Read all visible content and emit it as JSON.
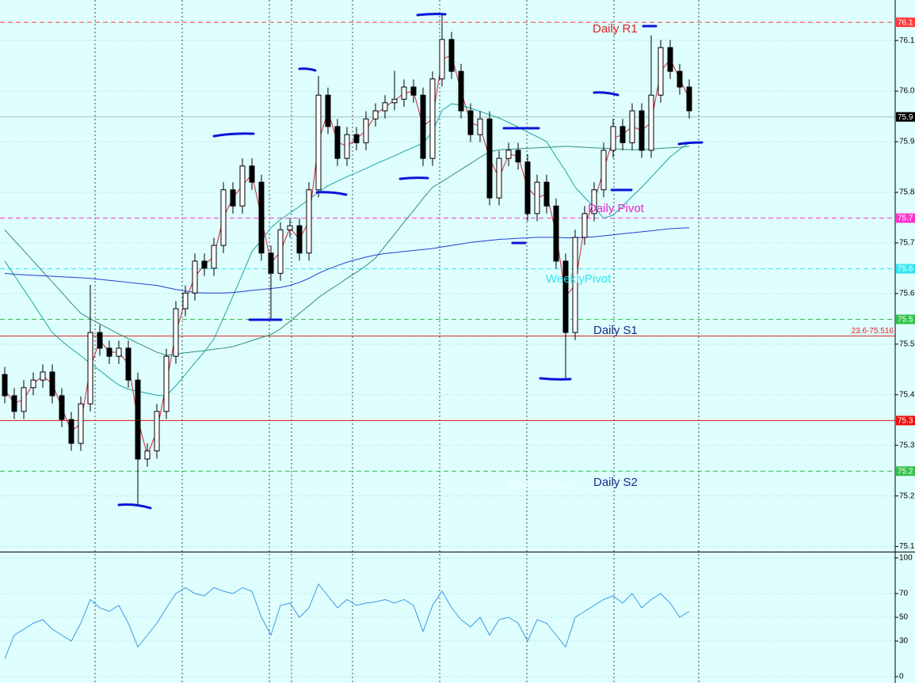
{
  "chart_data": [
    {
      "type": "candlestick",
      "open": [
        75.44,
        75.398,
        75.367,
        75.414,
        75.429,
        75.445,
        75.398,
        75.351,
        75.304,
        75.382,
        75.523,
        75.492,
        75.476,
        75.492,
        75.429,
        75.273,
        75.289,
        75.367,
        75.476,
        75.57,
        75.601,
        75.664,
        75.65,
        75.695,
        75.805,
        75.773,
        75.852,
        75.82,
        75.68,
        75.64,
        75.726,
        75.734,
        75.68,
        75.805,
        75.992,
        75.93,
        75.867,
        75.914,
        75.898,
        75.945,
        75.961,
        75.977,
        75.984,
        76.008,
        75.992,
        75.867,
        76.024,
        76.102,
        76.039,
        75.961,
        75.914,
        75.945,
        75.789,
        75.867,
        75.883,
        75.86,
        75.758,
        75.82,
        75.773,
        75.664,
        75.523,
        75.711,
        75.758,
        75.805,
        75.883,
        75.93,
        75.898,
        75.961,
        75.883,
        75.992,
        76.086,
        76.039,
        76.008
      ],
      "high": [
        75.455,
        75.413,
        75.429,
        75.444,
        75.46,
        75.46,
        75.413,
        75.366,
        75.397,
        75.617,
        75.538,
        75.507,
        75.507,
        75.507,
        75.444,
        75.304,
        75.382,
        75.491,
        75.585,
        75.616,
        75.679,
        75.679,
        75.71,
        75.82,
        75.82,
        75.867,
        75.867,
        75.835,
        75.695,
        75.741,
        75.749,
        75.749,
        75.82,
        76.03,
        76.007,
        75.945,
        75.929,
        75.929,
        75.96,
        75.976,
        75.992,
        76.04,
        76.023,
        76.023,
        76.007,
        76.039,
        76.152,
        76.117,
        76.054,
        75.976,
        75.96,
        75.96,
        75.882,
        75.898,
        75.898,
        75.875,
        75.835,
        75.835,
        75.788,
        75.679,
        75.726,
        75.773,
        75.82,
        75.898,
        75.945,
        75.945,
        75.976,
        75.976,
        76.11,
        76.101,
        76.101,
        76.054,
        76.023
      ],
      "low": [
        75.383,
        75.352,
        75.352,
        75.399,
        75.414,
        75.383,
        75.336,
        75.289,
        75.289,
        75.367,
        75.477,
        75.461,
        75.461,
        75.414,
        75.179,
        75.258,
        75.274,
        75.352,
        75.461,
        75.555,
        75.586,
        75.635,
        75.635,
        75.68,
        75.758,
        75.758,
        75.805,
        75.665,
        75.55,
        75.625,
        75.711,
        75.665,
        75.665,
        75.79,
        75.915,
        75.852,
        75.852,
        75.883,
        75.883,
        75.93,
        75.946,
        75.962,
        75.969,
        75.977,
        75.852,
        75.852,
        76.009,
        76.024,
        75.946,
        75.899,
        75.899,
        75.774,
        75.774,
        75.852,
        75.845,
        75.743,
        75.743,
        75.758,
        75.649,
        75.432,
        75.508,
        75.696,
        75.743,
        75.79,
        75.868,
        75.883,
        75.883,
        75.868,
        75.868,
        75.977,
        76.024,
        75.993,
        75.946
      ],
      "close": [
        75.398,
        75.367,
        75.414,
        75.429,
        75.445,
        75.398,
        75.351,
        75.304,
        75.382,
        75.523,
        75.492,
        75.476,
        75.492,
        75.429,
        75.273,
        75.289,
        75.367,
        75.476,
        75.57,
        75.601,
        75.664,
        75.65,
        75.695,
        75.805,
        75.773,
        75.852,
        75.82,
        75.68,
        75.64,
        75.726,
        75.734,
        75.68,
        75.805,
        75.992,
        75.93,
        75.867,
        75.914,
        75.898,
        75.945,
        75.961,
        75.977,
        75.984,
        76.008,
        75.992,
        75.867,
        76.024,
        76.102,
        76.039,
        75.961,
        75.914,
        75.945,
        75.789,
        75.867,
        75.883,
        75.86,
        75.758,
        75.82,
        75.773,
        75.664,
        75.523,
        75.711,
        75.758,
        75.805,
        75.883,
        75.93,
        75.898,
        75.961,
        75.883,
        75.992,
        76.086,
        76.039,
        76.008,
        75.961
      ],
      "series": [
        {
          "color": "#d2233a",
          "values": [
            75.41,
            75.383,
            75.391,
            75.422,
            75.437,
            75.422,
            75.375,
            75.328,
            75.343,
            75.453,
            75.508,
            75.484,
            75.484,
            75.461,
            75.351,
            75.281,
            75.328,
            75.422,
            75.523,
            75.586,
            75.633,
            75.657,
            75.673,
            75.75,
            75.789,
            75.813,
            75.836,
            75.75,
            75.66,
            75.683,
            75.73,
            75.707,
            75.743,
            75.899,
            75.961,
            75.899,
            75.891,
            75.906,
            75.922,
            75.953,
            75.969,
            75.981,
            75.996,
            76.0,
            75.93,
            75.946,
            76.063,
            76.071,
            76.0,
            75.938,
            75.93,
            75.867,
            75.828,
            75.875,
            75.872,
            75.809,
            75.789,
            75.797,
            75.719,
            75.594,
            75.617,
            75.735,
            75.782,
            75.844,
            75.907,
            75.914,
            75.93,
            75.922,
            75.938,
            76.039,
            76.063,
            76.024,
            75.985
          ]
        },
        {
          "color": "#1aa5a5",
          "values": [
            75.664,
            75.636,
            75.608,
            75.58,
            75.551,
            75.523,
            75.506,
            75.491,
            75.477,
            75.462,
            75.448,
            75.433,
            75.419,
            75.411,
            75.407,
            75.403,
            75.399,
            75.398,
            75.418,
            75.44,
            75.463,
            75.485,
            75.51,
            75.552,
            75.595,
            75.638,
            75.683,
            75.705,
            75.73,
            75.746,
            75.759,
            75.772,
            75.786,
            75.8,
            75.813,
            75.822,
            75.831,
            75.839,
            75.847,
            75.856,
            75.864,
            75.872,
            75.881,
            75.889,
            75.897,
            75.92,
            75.962,
            75.975,
            75.972,
            75.966,
            75.96,
            75.953,
            75.947,
            75.938,
            75.929,
            75.919,
            75.91,
            75.9,
            75.87,
            75.842,
            75.81,
            75.79,
            75.77,
            75.749,
            75.755,
            75.773,
            75.792,
            75.81,
            75.83,
            75.85,
            75.87,
            75.885,
            75.898
          ]
        },
        {
          "color": "#2f8f78",
          "values": [
            75.726,
            75.705,
            75.685,
            75.664,
            75.643,
            75.623,
            75.602,
            75.581,
            75.561,
            75.55,
            75.54,
            75.53,
            75.52,
            75.511,
            75.502,
            75.493,
            75.484,
            75.478,
            75.48,
            75.483,
            75.485,
            75.487,
            75.49,
            75.492,
            75.495,
            75.501,
            75.507,
            75.513,
            75.519,
            75.53,
            75.545,
            75.561,
            75.576,
            75.592,
            75.605,
            75.617,
            75.63,
            75.642,
            75.655,
            75.67,
            75.694,
            75.717,
            75.741,
            75.764,
            75.788,
            75.81,
            75.821,
            75.833,
            75.845,
            75.857,
            75.869,
            75.88,
            75.884,
            75.885,
            75.886,
            75.887,
            75.888,
            75.889,
            75.89,
            75.891,
            75.89,
            75.889,
            75.888,
            75.887,
            75.886,
            75.885,
            75.884,
            75.884,
            75.885,
            75.887,
            75.888,
            75.889,
            75.891
          ]
        },
        {
          "color": "#1f3fd6",
          "values": [
            75.64,
            75.638,
            75.637,
            75.636,
            75.635,
            75.634,
            75.633,
            75.632,
            75.631,
            75.63,
            75.628,
            75.626,
            75.624,
            75.622,
            75.62,
            75.618,
            75.616,
            75.612,
            75.608,
            75.605,
            75.602,
            75.601,
            75.601,
            75.601,
            75.602,
            75.604,
            75.606,
            75.608,
            75.61,
            75.612,
            75.616,
            75.622,
            75.63,
            75.64,
            75.648,
            75.655,
            75.662,
            75.667,
            75.672,
            75.676,
            75.679,
            75.681,
            75.683,
            75.685,
            75.687,
            75.689,
            75.692,
            75.695,
            75.698,
            75.701,
            75.703,
            75.705,
            75.707,
            75.708,
            75.709,
            75.71,
            75.711,
            75.711,
            75.711,
            75.71,
            75.71,
            75.711,
            75.712,
            75.714,
            75.716,
            75.718,
            75.72,
            75.722,
            75.724,
            75.726,
            75.728,
            75.729,
            75.73
          ]
        }
      ],
      "ylim": [
        75.09,
        76.18
      ],
      "yticks": [
        75.1,
        75.2,
        75.3,
        75.4,
        75.5,
        75.6,
        75.7,
        75.8,
        75.9,
        {
          "value": 76.0,
          "label": "76.0"
        },
        76.1
      ],
      "grid": true,
      "levels": [
        {
          "value": 76.136,
          "label": "76.1",
          "color": "#ff3b3b",
          "dash": true,
          "box": true
        },
        {
          "value": 75.949,
          "label": "75.9",
          "color": "#000000",
          "dash": false,
          "box": true
        },
        {
          "value": 75.749,
          "label": "75.7",
          "color": "#ff33cc",
          "dash": true,
          "box": true
        },
        {
          "value": 75.649,
          "label": "75.6",
          "color": "#33e6f0",
          "dash": true,
          "box": true
        },
        {
          "value": 75.549,
          "label": "75.5",
          "color": "#33c24a",
          "dash": true,
          "box": true
        },
        {
          "value": 75.516,
          "label": "23.6-75.516",
          "color": "#e02020",
          "dash": false,
          "box": false
        },
        {
          "value": 75.349,
          "label": "75.3",
          "color": "#ee1111",
          "dash": false,
          "box": true
        },
        {
          "value": 75.249,
          "label": "75.2",
          "color": "#33c24a",
          "dash": true,
          "box": true
        }
      ],
      "annotations": [
        {
          "text": "Daily R1",
          "color": "#e01e1e"
        },
        {
          "text": "Daily Pivot",
          "color": "#ee22cc"
        },
        {
          "text": "WeeklyPivot",
          "color": "#33e6f0"
        },
        {
          "text": "Daily S1",
          "color": "#1a2a8a"
        },
        {
          "text": "Daily S2",
          "color": "#1a2a8a"
        },
        {
          "text": "WeeklyPivot",
          "color": "#f4ffff"
        }
      ]
    },
    {
      "type": "line",
      "color": "#3a9ae8",
      "values": [
        15,
        35,
        40,
        45,
        48,
        40,
        35,
        30,
        45,
        65,
        58,
        55,
        60,
        45,
        25,
        35,
        45,
        58,
        70,
        75,
        70,
        68,
        75,
        72,
        70,
        75,
        72,
        50,
        35,
        60,
        62,
        50,
        58,
        78,
        68,
        58,
        65,
        60,
        62,
        63,
        65,
        62,
        65,
        60,
        38,
        60,
        72,
        58,
        48,
        42,
        50,
        35,
        48,
        50,
        45,
        30,
        48,
        45,
        35,
        25,
        50,
        55,
        60,
        65,
        68,
        62,
        70,
        58,
        65,
        70,
        62,
        50,
        55
      ],
      "ylim": [
        0,
        100
      ],
      "yticks": [
        0,
        30,
        50,
        70,
        100
      ],
      "grid": true
    }
  ]
}
